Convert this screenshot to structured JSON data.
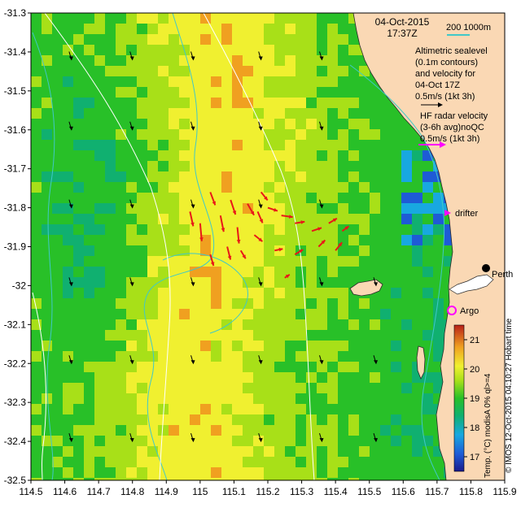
{
  "title": {
    "date": "04-Oct-2015",
    "time": "17:37Z"
  },
  "scale_bar": {
    "label": "200  1000m",
    "color": "#40c8c8"
  },
  "legend": {
    "altimetric_lines": [
      "Altimetric sealevel",
      "(0.1m contours)",
      "and velocity for",
      "04-Oct 17Z",
      "0.5m/s (1kt 3h)"
    ],
    "hf_radar_lines": [
      "HF radar velocity",
      "(3-6h avg)noQC",
      "0.5m/s (1kt 3h)"
    ],
    "drifter_label": "drifter",
    "argo_label": "Argo",
    "city_label": "Perth",
    "altimetry_arrow_color": "#000000",
    "hf_radar_arrow_color": "#ff00ff",
    "drifter_color": "#ff00ff",
    "argo_color": "#ff00ff"
  },
  "colorbar": {
    "label": "Temp. (°C) modisA 0% ql>=4",
    "ticks": [
      "17",
      "18",
      "19",
      "20",
      "21"
    ],
    "range": [
      16.5,
      21.5
    ]
  },
  "credit": "© IMOS 12-Oct-2015 04:10:27 Hobart time",
  "axes": {
    "x_ticks": [
      "114.5",
      "114.6",
      "114.7",
      "114.8",
      "114.9",
      "115",
      "115.1",
      "115.2",
      "115.3",
      "115.4",
      "115.5",
      "115.6",
      "115.7",
      "115.8",
      "115.9"
    ],
    "y_ticks": [
      "-31.3",
      "-31.4",
      "-31.5",
      "-31.6",
      "-31.7",
      "-31.8",
      "-31.9",
      "-32",
      "-32.1",
      "-32.2",
      "-32.3",
      "-32.4",
      "-32.5"
    ],
    "x_range": [
      114.5,
      115.9
    ],
    "y_range": [
      -32.5,
      -31.3
    ]
  }
}
